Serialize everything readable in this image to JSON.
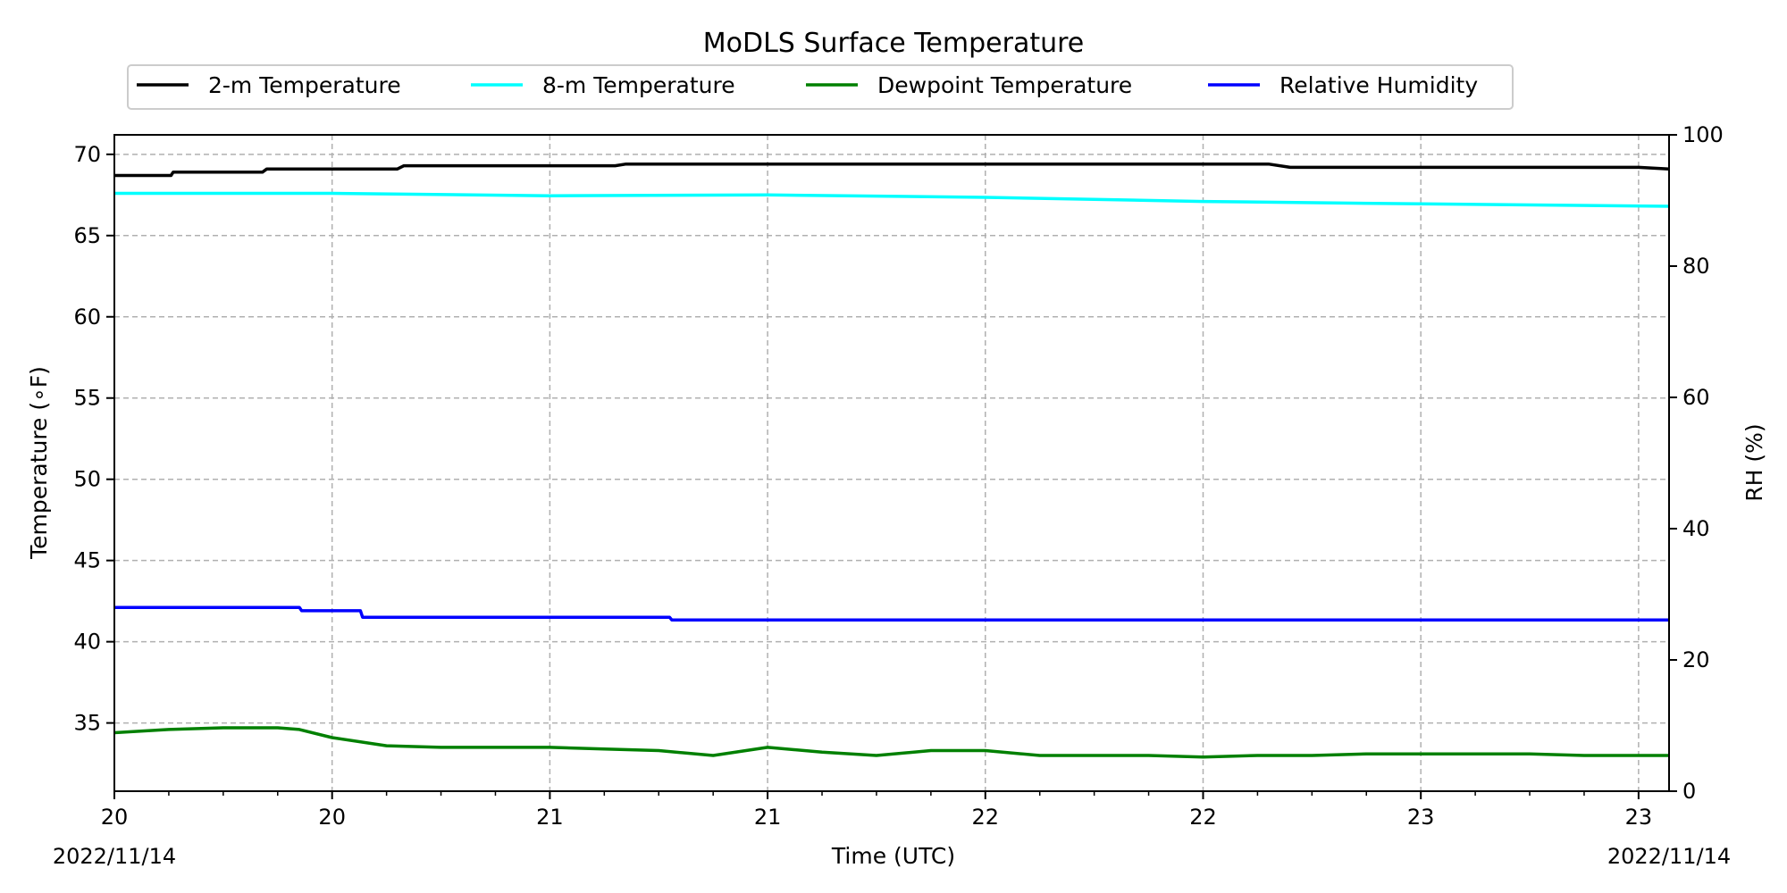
{
  "chart_data": {
    "type": "line",
    "title": "MoDLS Surface Temperature",
    "xlabel": "Time (UTC)",
    "ylabel": "Temperature ($^\\circ$F)",
    "ylabel_display": "Temperature (∘F)",
    "y2label": "RH (%)",
    "xlim": [
      0,
      7.14
    ],
    "ylim": [
      30.8,
      71.2
    ],
    "y2lim": [
      0,
      100
    ],
    "x_tick_labels": [
      "20",
      "20",
      "21",
      "21",
      "22",
      "22",
      "23",
      "23"
    ],
    "x_tick_positions": [
      0,
      1,
      2,
      3,
      4,
      5,
      6,
      7
    ],
    "date_left": "2022/11/14",
    "date_right": "2022/11/14",
    "y_ticks": [
      35,
      40,
      45,
      50,
      55,
      60,
      65,
      70
    ],
    "y2_ticks": [
      0,
      20,
      40,
      60,
      80,
      100
    ],
    "grid": true,
    "legend_position": "top-center",
    "series": [
      {
        "name": "2-m Temperature",
        "axis": "left",
        "color": "#000000",
        "x": [
          0,
          0.26,
          0.27,
          0.68,
          0.7,
          1.3,
          1.33,
          2.3,
          2.35,
          5.3,
          5.4,
          7.0,
          7.14
        ],
        "values": [
          68.7,
          68.7,
          68.9,
          68.9,
          69.1,
          69.1,
          69.3,
          69.3,
          69.4,
          69.4,
          69.2,
          69.2,
          69.1
        ]
      },
      {
        "name": "8-m Temperature",
        "axis": "left",
        "color": "#00ffff",
        "x": [
          0,
          1,
          2,
          3,
          4,
          5,
          6,
          7.14
        ],
        "values": [
          67.6,
          67.6,
          67.45,
          67.5,
          67.35,
          67.1,
          66.95,
          66.8
        ]
      },
      {
        "name": "Dewpoint Temperature",
        "axis": "left",
        "color": "#008000",
        "x": [
          0,
          0.25,
          0.5,
          0.75,
          0.85,
          1.0,
          1.25,
          1.5,
          1.75,
          2.0,
          2.25,
          2.5,
          2.75,
          3.0,
          3.25,
          3.5,
          3.75,
          4.0,
          4.25,
          4.5,
          4.75,
          5.0,
          5.25,
          5.5,
          5.75,
          6.0,
          6.25,
          6.5,
          6.75,
          7.0,
          7.14
        ],
        "values": [
          34.4,
          34.6,
          34.7,
          34.7,
          34.6,
          34.1,
          33.6,
          33.5,
          33.5,
          33.5,
          33.4,
          33.3,
          33.0,
          33.5,
          33.2,
          33.0,
          33.3,
          33.3,
          33.0,
          33.0,
          33.0,
          32.9,
          33.0,
          33.0,
          33.1,
          33.1,
          33.1,
          33.1,
          33.0,
          33.0,
          33.0
        ]
      },
      {
        "name": "Relative Humidity",
        "axis": "right",
        "color": "#0000ff",
        "x": [
          0,
          0.85,
          0.86,
          1.13,
          1.14,
          2.55,
          2.56,
          7.14
        ],
        "values": [
          28.0,
          28.0,
          27.5,
          27.5,
          26.5,
          26.5,
          26.1,
          26.1
        ]
      }
    ]
  }
}
